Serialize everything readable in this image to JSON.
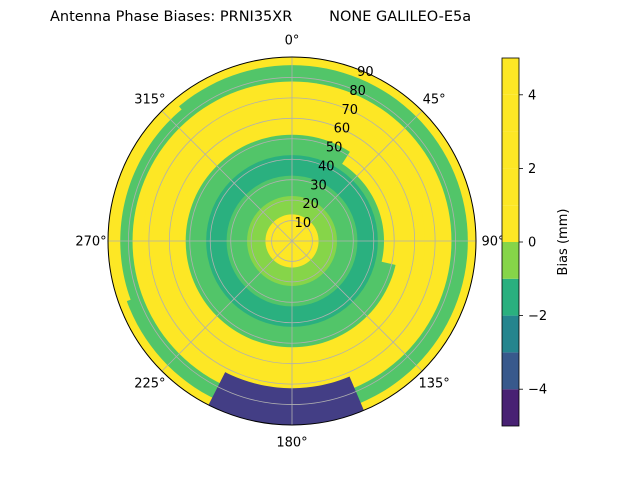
{
  "chart_data": {
    "type": "heatmap",
    "projection": "polar",
    "title": "Antenna Phase Biases: PRNI35XR        NONE GALILEO-E5a",
    "angular_tick_labels": [
      "0°",
      "45°",
      "90°",
      "135°",
      "180°",
      "225°",
      "270°",
      "315°"
    ],
    "angular_ticks_deg": [
      0,
      45,
      90,
      135,
      180,
      225,
      270,
      315
    ],
    "radial_tick_labels": [
      "10",
      "20",
      "30",
      "40",
      "50",
      "60",
      "70",
      "80",
      "90"
    ],
    "radial_ticks": [
      10,
      20,
      30,
      40,
      50,
      60,
      70,
      80,
      90
    ],
    "rlim": [
      0,
      90
    ],
    "theta_zero": "top",
    "theta_direction": "clockwise",
    "grid": true,
    "colorbar": {
      "label": "Bias (mm)",
      "tick_labels": [
        "−4",
        "−2",
        "0",
        "2",
        "4"
      ],
      "ticks": [
        -4,
        -2,
        0,
        2,
        4
      ],
      "range": [
        -5,
        5
      ],
      "levels": [
        -5,
        -4.5,
        -4,
        -3.5,
        -3,
        -2.5,
        -2,
        -1.5,
        -1,
        -0.5,
        0,
        0.5,
        1,
        1.5,
        2,
        2.5,
        3,
        3.5,
        4,
        4.5,
        5
      ],
      "colors": [
        "#440154",
        "#482173",
        "#433e85",
        "#38598c",
        "#2d708e",
        "#25858e",
        "#1e9b8a",
        "#2ab07f",
        "#52c569",
        "#86d549",
        "#c2df23",
        "#fde725"
      ],
      "colormap": "viridis"
    },
    "zones": [
      {
        "r": [
          0,
          13
        ],
        "bias_mm": 0.7
      },
      {
        "r": [
          13,
          22
        ],
        "bias_mm": -0.3
      },
      {
        "r": [
          22,
          32
        ],
        "bias_mm": -1.0
      },
      {
        "r": [
          32,
          42
        ],
        "bias_mm": -1.3
      },
      {
        "r": [
          42,
          52
        ],
        "bias_mm": -0.8
      },
      {
        "r": [
          52,
          60
        ],
        "bias_mm": 1.6
      },
      {
        "r": [
          60,
          70
        ],
        "bias_mm": 2.6
      },
      {
        "r": [
          70,
          78
        ],
        "bias_mm": 0.7
      },
      {
        "r": [
          78,
          86
        ],
        "bias_mm": -1.0
      },
      {
        "r": [
          86,
          90
        ],
        "bias_mm": 0.5
      }
    ],
    "features": [
      {
        "desc": "crescent",
        "center_az_deg": 68,
        "r": [
          45,
          65
        ],
        "span_deg": 70,
        "bias_mm": 3.6
      },
      {
        "desc": "crescent",
        "center_az_deg": 258,
        "r": [
          55,
          73
        ],
        "span_deg": 70,
        "bias_mm": 3.6
      },
      {
        "desc": "blob",
        "center_az_deg": 182,
        "r": [
          72,
          90
        ],
        "span_deg": 50,
        "bias_mm": -3.6
      },
      {
        "desc": "blob",
        "center_az_deg": 285,
        "r": [
          84,
          90
        ],
        "span_deg": 70,
        "bias_mm": 4.2
      }
    ]
  }
}
